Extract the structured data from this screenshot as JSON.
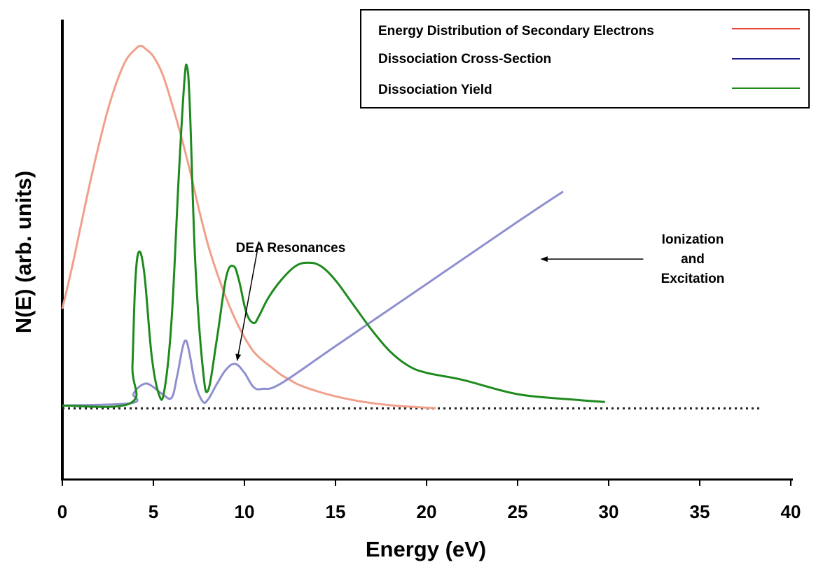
{
  "chart_data": {
    "type": "line",
    "title": "",
    "xlabel": "Energy (eV)",
    "ylabel": "N(E) (arb. units)",
    "xlim": [
      0,
      40
    ],
    "ylim": [
      -0.2,
      1.07
    ],
    "x_ticks": [
      0,
      5,
      10,
      15,
      20,
      25,
      30,
      35,
      40
    ],
    "y_ticks": [],
    "grid": false,
    "legend_position": "top-right",
    "baseline": {
      "y": 0,
      "style": "dotted",
      "x_range": [
        0,
        38.3
      ],
      "color": "#222222"
    },
    "series": [
      {
        "name": "Energy Distribution of Secondary Electrons",
        "legend_color": "#e8413a",
        "line_color": "#f0a08a",
        "x": [
          0,
          0.5,
          1,
          1.5,
          2,
          2.5,
          3,
          3.5,
          4,
          4.3,
          4.6,
          5,
          5.5,
          6,
          6.5,
          7,
          7.5,
          8,
          8.5,
          9,
          9.5,
          10,
          10.5,
          11,
          11.5,
          12,
          12.5,
          13,
          14,
          15,
          16,
          17,
          18,
          19,
          20,
          20.5
        ],
        "values": [
          0.28,
          0.39,
          0.51,
          0.63,
          0.74,
          0.84,
          0.92,
          0.98,
          1.01,
          1.02,
          1.01,
          0.99,
          0.94,
          0.86,
          0.77,
          0.67,
          0.56,
          0.46,
          0.38,
          0.31,
          0.25,
          0.2,
          0.16,
          0.135,
          0.115,
          0.095,
          0.08,
          0.066,
          0.048,
          0.034,
          0.023,
          0.015,
          0.009,
          0.005,
          0.002,
          0.001
        ]
      },
      {
        "name": "Dissociation Cross-Section",
        "legend_color": "#1b1b8a",
        "line_color": "#8f8fd0",
        "x": [
          0,
          3.8,
          3.9,
          4.2,
          4.6,
          5,
          5.5,
          6,
          6.3,
          6.6,
          6.8,
          7,
          7.3,
          7.7,
          8,
          8.5,
          9,
          9.5,
          10,
          10.5,
          11,
          12,
          15,
          20,
          25,
          27.5
        ],
        "values": [
          0.008,
          0.015,
          0.04,
          0.06,
          0.07,
          0.06,
          0.04,
          0.03,
          0.09,
          0.17,
          0.19,
          0.15,
          0.07,
          0.02,
          0.025,
          0.07,
          0.11,
          0.125,
          0.1,
          0.06,
          0.055,
          0.07,
          0.175,
          0.35,
          0.525,
          0.61
        ]
      },
      {
        "name": "Dissociation Yield",
        "legend_color": "#1e8a1e",
        "line_color": "#1e8a1e",
        "x": [
          0,
          3.75,
          3.85,
          4.0,
          4.2,
          4.5,
          4.9,
          5.3,
          5.6,
          6.0,
          6.4,
          6.7,
          6.85,
          7.0,
          7.3,
          7.7,
          8.0,
          8.5,
          9.0,
          9.4,
          9.7,
          10.1,
          10.5,
          10.8,
          11.3,
          12,
          12.8,
          13.5,
          14.2,
          15,
          16,
          17,
          18,
          19,
          20,
          22,
          25,
          28,
          29.8
        ],
        "values": [
          0.008,
          0.015,
          0.12,
          0.35,
          0.44,
          0.38,
          0.15,
          0.04,
          0.05,
          0.25,
          0.66,
          0.92,
          0.96,
          0.85,
          0.41,
          0.12,
          0.05,
          0.2,
          0.37,
          0.4,
          0.36,
          0.27,
          0.24,
          0.26,
          0.31,
          0.36,
          0.4,
          0.41,
          0.4,
          0.36,
          0.29,
          0.22,
          0.16,
          0.12,
          0.1,
          0.08,
          0.04,
          0.025,
          0.018
        ]
      }
    ],
    "annotations": [
      {
        "text": "DEA Resonances",
        "arrow_from": [
          10.8,
          0.47
        ],
        "arrow_to": [
          9.6,
          0.135
        ]
      },
      {
        "lines": [
          "Ionization",
          "and",
          "Excitation"
        ],
        "arrow_from": [
          31.9,
          0.42
        ],
        "arrow_to": [
          26.3,
          0.42
        ]
      }
    ]
  }
}
